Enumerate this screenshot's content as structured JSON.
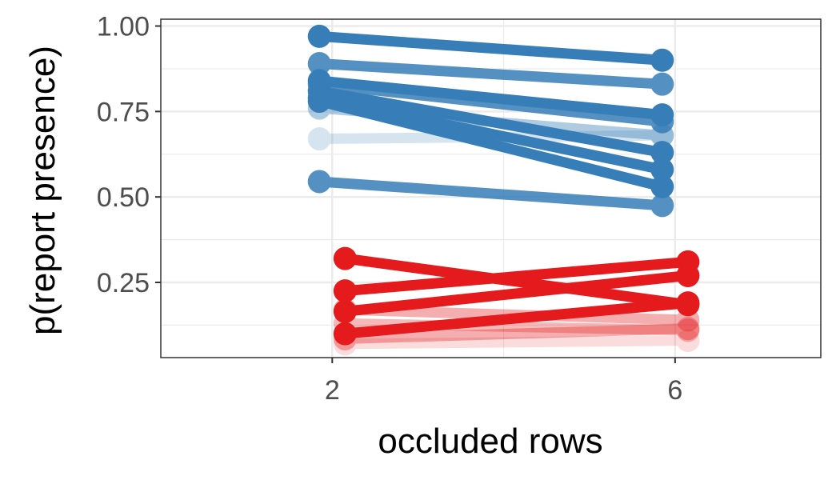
{
  "chart_data": {
    "type": "line",
    "xlabel": "occluded rows",
    "ylabel": "p(report presence)",
    "x_ticks": [
      2,
      6
    ],
    "y_ticks": [
      "0.25",
      "0.50",
      "0.75",
      "1.00"
    ],
    "xlim": [
      0,
      7.7
    ],
    "ylim": [
      0.03,
      1.02
    ],
    "grid": true,
    "legend": "none",
    "colors": {
      "blue": "#377eb8",
      "red": "#e41a1c",
      "grid": "#ebebeb",
      "border": "#333333"
    },
    "series": [
      {
        "group": "blue",
        "x": [
          1.85,
          5.85
        ],
        "values": [
          0.97,
          0.9
        ],
        "alpha": 1.0
      },
      {
        "group": "blue",
        "x": [
          1.85,
          5.85
        ],
        "values": [
          0.89,
          0.83
        ],
        "alpha": 0.85
      },
      {
        "group": "blue",
        "x": [
          1.85,
          5.85
        ],
        "values": [
          0.84,
          0.74
        ],
        "alpha": 1.0
      },
      {
        "group": "blue",
        "x": [
          1.85,
          5.85
        ],
        "values": [
          0.83,
          0.72
        ],
        "alpha": 0.85
      },
      {
        "group": "blue",
        "x": [
          1.85,
          5.85
        ],
        "values": [
          0.81,
          0.63
        ],
        "alpha": 1.0
      },
      {
        "group": "blue",
        "x": [
          1.85,
          5.85
        ],
        "values": [
          0.79,
          0.58
        ],
        "alpha": 1.0
      },
      {
        "group": "blue",
        "x": [
          1.85,
          5.85
        ],
        "values": [
          0.78,
          0.53
        ],
        "alpha": 1.0
      },
      {
        "group": "blue",
        "x": [
          1.85,
          5.85
        ],
        "values": [
          0.76,
          0.68
        ],
        "alpha": 0.4
      },
      {
        "group": "blue",
        "x": [
          1.85,
          5.85
        ],
        "values": [
          0.67,
          0.68
        ],
        "alpha": 0.2
      },
      {
        "group": "blue",
        "x": [
          1.85,
          5.85
        ],
        "values": [
          0.545,
          0.475
        ],
        "alpha": 0.85
      },
      {
        "group": "red",
        "x": [
          2.15,
          6.15
        ],
        "values": [
          0.32,
          0.185
        ],
        "alpha": 1.0
      },
      {
        "group": "red",
        "x": [
          2.15,
          6.15
        ],
        "values": [
          0.225,
          0.31
        ],
        "alpha": 1.0
      },
      {
        "group": "red",
        "x": [
          2.15,
          6.15
        ],
        "values": [
          0.165,
          0.27
        ],
        "alpha": 1.0
      },
      {
        "group": "red",
        "x": [
          2.15,
          6.15
        ],
        "values": [
          0.1,
          0.19
        ],
        "alpha": 1.0
      },
      {
        "group": "red",
        "x": [
          2.15,
          6.15
        ],
        "values": [
          0.17,
          0.14
        ],
        "alpha": 0.35
      },
      {
        "group": "red",
        "x": [
          2.15,
          6.15
        ],
        "values": [
          0.13,
          0.11
        ],
        "alpha": 0.3
      },
      {
        "group": "red",
        "x": [
          2.15,
          6.15
        ],
        "values": [
          0.085,
          0.115
        ],
        "alpha": 0.35
      },
      {
        "group": "red",
        "x": [
          2.15,
          6.15
        ],
        "values": [
          0.07,
          0.08
        ],
        "alpha": 0.15
      }
    ]
  }
}
